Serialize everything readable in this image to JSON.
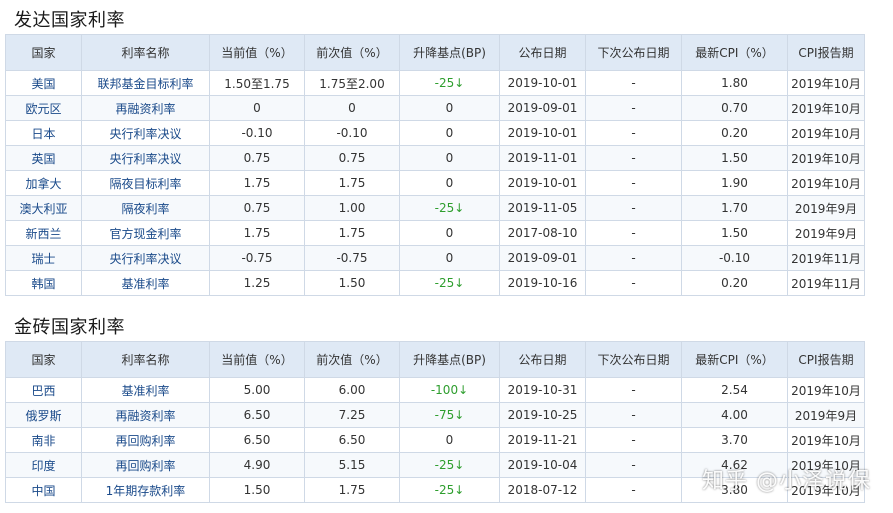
{
  "developed": {
    "title": "发达国家利率",
    "headers": [
      "国家",
      "利率名称",
      "当前值（%）",
      "前次值（%）",
      "升降基点(BP)",
      "公布日期",
      "下次公布日期",
      "最新CPI（%）",
      "CPI报告期"
    ],
    "rows": [
      {
        "country": "美国",
        "name": "联邦基金目标利率",
        "current": "1.50至1.75",
        "previous": "1.75至2.00",
        "bp": "-25↓",
        "date": "2019-10-01",
        "next": "-",
        "cpi": "1.80",
        "period": "2019年10月"
      },
      {
        "country": "欧元区",
        "name": "再融资利率",
        "current": "0",
        "previous": "0",
        "bp": "0",
        "date": "2019-09-01",
        "next": "-",
        "cpi": "0.70",
        "period": "2019年10月"
      },
      {
        "country": "日本",
        "name": "央行利率决议",
        "current": "-0.10",
        "previous": "-0.10",
        "bp": "0",
        "date": "2019-10-01",
        "next": "-",
        "cpi": "0.20",
        "period": "2019年10月"
      },
      {
        "country": "英国",
        "name": "央行利率决议",
        "current": "0.75",
        "previous": "0.75",
        "bp": "0",
        "date": "2019-11-01",
        "next": "-",
        "cpi": "1.50",
        "period": "2019年10月"
      },
      {
        "country": "加拿大",
        "name": "隔夜目标利率",
        "current": "1.75",
        "previous": "1.75",
        "bp": "0",
        "date": "2019-10-01",
        "next": "-",
        "cpi": "1.90",
        "period": "2019年10月"
      },
      {
        "country": "澳大利亚",
        "name": "隔夜利率",
        "current": "0.75",
        "previous": "1.00",
        "bp": "-25↓",
        "date": "2019-11-05",
        "next": "-",
        "cpi": "1.70",
        "period": "2019年9月"
      },
      {
        "country": "新西兰",
        "name": "官方现金利率",
        "current": "1.75",
        "previous": "1.75",
        "bp": "0",
        "date": "2017-08-10",
        "next": "-",
        "cpi": "1.50",
        "period": "2019年9月"
      },
      {
        "country": "瑞士",
        "name": "央行利率决议",
        "current": "-0.75",
        "previous": "-0.75",
        "bp": "0",
        "date": "2019-09-01",
        "next": "-",
        "cpi": "-0.10",
        "period": "2019年11月"
      },
      {
        "country": "韩国",
        "name": "基准利率",
        "current": "1.25",
        "previous": "1.50",
        "bp": "-25↓",
        "date": "2019-10-16",
        "next": "-",
        "cpi": "0.20",
        "period": "2019年11月"
      }
    ]
  },
  "brics": {
    "title": "金砖国家利率",
    "headers": [
      "国家",
      "利率名称",
      "当前值（%）",
      "前次值（%）",
      "升降基点(BP)",
      "公布日期",
      "下次公布日期",
      "最新CPI（%）",
      "CPI报告期"
    ],
    "rows": [
      {
        "country": "巴西",
        "name": "基准利率",
        "current": "5.00",
        "previous": "6.00",
        "bp": "-100↓",
        "date": "2019-10-31",
        "next": "-",
        "cpi": "2.54",
        "period": "2019年10月"
      },
      {
        "country": "俄罗斯",
        "name": "再融资利率",
        "current": "6.50",
        "previous": "7.25",
        "bp": "-75↓",
        "date": "2019-10-25",
        "next": "-",
        "cpi": "4.00",
        "period": "2019年9月"
      },
      {
        "country": "南非",
        "name": "再回购利率",
        "current": "6.50",
        "previous": "6.50",
        "bp": "0",
        "date": "2019-11-21",
        "next": "-",
        "cpi": "3.70",
        "period": "2019年10月"
      },
      {
        "country": "印度",
        "name": "再回购利率",
        "current": "4.90",
        "previous": "5.15",
        "bp": "-25↓",
        "date": "2019-10-04",
        "next": "-",
        "cpi": "4.62",
        "period": "2019年10月"
      },
      {
        "country": "中国",
        "name": "1年期存款利率",
        "current": "1.50",
        "previous": "1.75",
        "bp": "-25↓",
        "date": "2018-07-12",
        "next": "-",
        "cpi": "3.80",
        "period": "2019年10月"
      }
    ]
  },
  "watermark": "知乎 @小泽说保",
  "colors": {
    "header_bg": "#dfe9f5",
    "border": "#cfd9e6",
    "link_text": "#1a4a8a",
    "decrease": "#2e9e2e"
  }
}
